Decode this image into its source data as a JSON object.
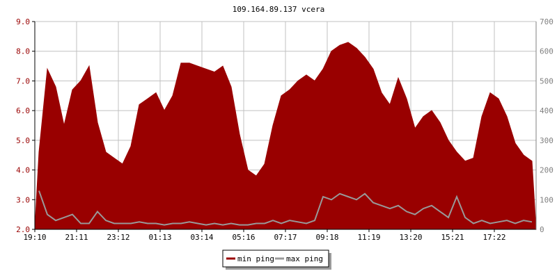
{
  "chart_data": {
    "type": "area",
    "title": "109.164.89.137 vcera",
    "xlabel": "",
    "ylabel": "",
    "grid": true,
    "legend_placement": "bottom-center",
    "x_ticks": [
      "19:10",
      "21:11",
      "23:12",
      "01:13",
      "03:14",
      "05:16",
      "07:17",
      "09:18",
      "11:19",
      "13:20",
      "15:21",
      "17:22"
    ],
    "x_range": [
      "19:10",
      "19:10"
    ],
    "ylim_left": [
      2.0,
      9.0
    ],
    "y_ticks_left": [
      "2.0",
      "3.0",
      "4.0",
      "5.0",
      "6.0",
      "7.0",
      "8.0",
      "9.0"
    ],
    "ylim_right": [
      0,
      700
    ],
    "y_ticks_right": [
      "0",
      "100",
      "200",
      "300",
      "400",
      "500",
      "600",
      "700"
    ],
    "series": [
      {
        "name": "min ping",
        "axis": "left",
        "color": "#990000",
        "style": "filled-area",
        "values": [
          4.6,
          7.4,
          6.8,
          5.5,
          6.7,
          7.0,
          7.5,
          5.6,
          4.6,
          4.4,
          4.2,
          4.8,
          6.2,
          6.4,
          6.6,
          6.0,
          6.5,
          7.6,
          7.6,
          7.5,
          7.4,
          7.3,
          7.5,
          6.8,
          5.2,
          4.0,
          3.8,
          4.2,
          5.5,
          6.5,
          6.7,
          7.0,
          7.2,
          7.0,
          7.4,
          8.0,
          8.2,
          8.3,
          8.1,
          7.8,
          7.4,
          6.6,
          6.2,
          7.1,
          6.4,
          5.4,
          5.8,
          6.0,
          5.6,
          5.0,
          4.6,
          4.3,
          4.4,
          5.8,
          6.6,
          6.4,
          5.8,
          4.9,
          4.5,
          4.3
        ]
      },
      {
        "name": "max ping",
        "axis": "right",
        "color": "#999999",
        "style": "line",
        "values": [
          130,
          50,
          30,
          40,
          50,
          20,
          20,
          60,
          30,
          20,
          20,
          20,
          25,
          20,
          20,
          15,
          20,
          20,
          25,
          20,
          15,
          20,
          15,
          20,
          15,
          15,
          20,
          20,
          30,
          20,
          30,
          25,
          20,
          30,
          110,
          100,
          120,
          110,
          100,
          120,
          90,
          80,
          70,
          80,
          60,
          50,
          70,
          80,
          60,
          40,
          110,
          40,
          20,
          30,
          20,
          25,
          30,
          20,
          30,
          25
        ]
      }
    ]
  }
}
